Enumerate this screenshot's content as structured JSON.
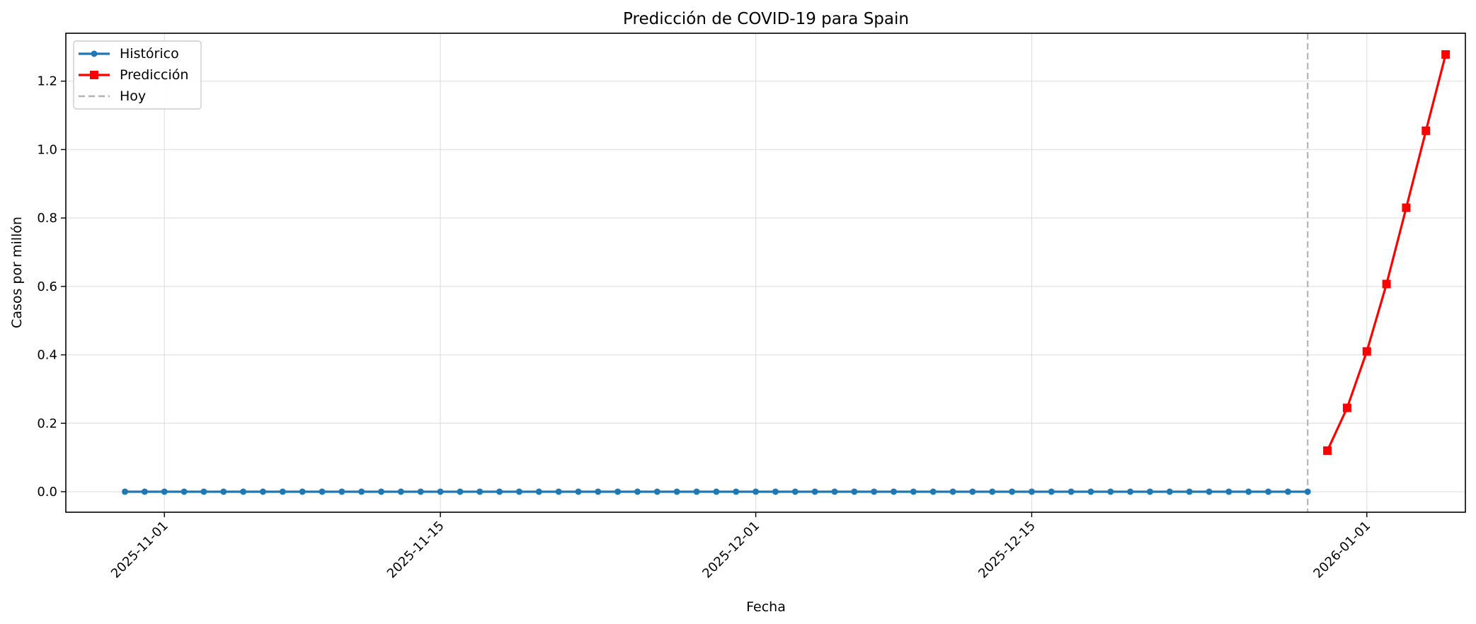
{
  "chart_data": {
    "type": "line",
    "title": "Predicción de COVID-19 para Spain",
    "xlabel": "Fecha",
    "ylabel": "Casos por millón",
    "x_range": [
      "2025-10-27",
      "2026-01-06"
    ],
    "ylim": [
      -0.06,
      1.34
    ],
    "y_ticks": [
      0.0,
      0.2,
      0.4,
      0.6,
      0.8,
      1.0,
      1.2
    ],
    "x_ticks": [
      "2025-11-01",
      "2025-11-15",
      "2025-12-01",
      "2025-12-15",
      "2026-01-01"
    ],
    "grid": true,
    "legend_position": "top-left",
    "today_line": {
      "label": "Hoy",
      "date": "2025-12-29",
      "color": "#b3b3b3"
    },
    "series": [
      {
        "name": "Histórico",
        "color": "#1f77b4",
        "marker": "circle",
        "start_date": "2025-10-30",
        "end_date": "2025-12-29",
        "values": [
          0,
          0,
          0,
          0,
          0,
          0,
          0,
          0,
          0,
          0,
          0,
          0,
          0,
          0,
          0,
          0,
          0,
          0,
          0,
          0,
          0,
          0,
          0,
          0,
          0,
          0,
          0,
          0,
          0,
          0,
          0,
          0,
          0,
          0,
          0,
          0,
          0,
          0,
          0,
          0,
          0,
          0,
          0,
          0,
          0,
          0,
          0,
          0,
          0,
          0,
          0,
          0,
          0,
          0,
          0,
          0,
          0,
          0,
          0,
          0,
          0
        ]
      },
      {
        "name": "Predicción",
        "color": "#ff0000",
        "marker": "square",
        "start_date": "2025-12-30",
        "end_date": "2026-01-05",
        "values": [
          0.12,
          0.245,
          0.41,
          0.607,
          0.83,
          1.055,
          1.278
        ]
      }
    ]
  }
}
